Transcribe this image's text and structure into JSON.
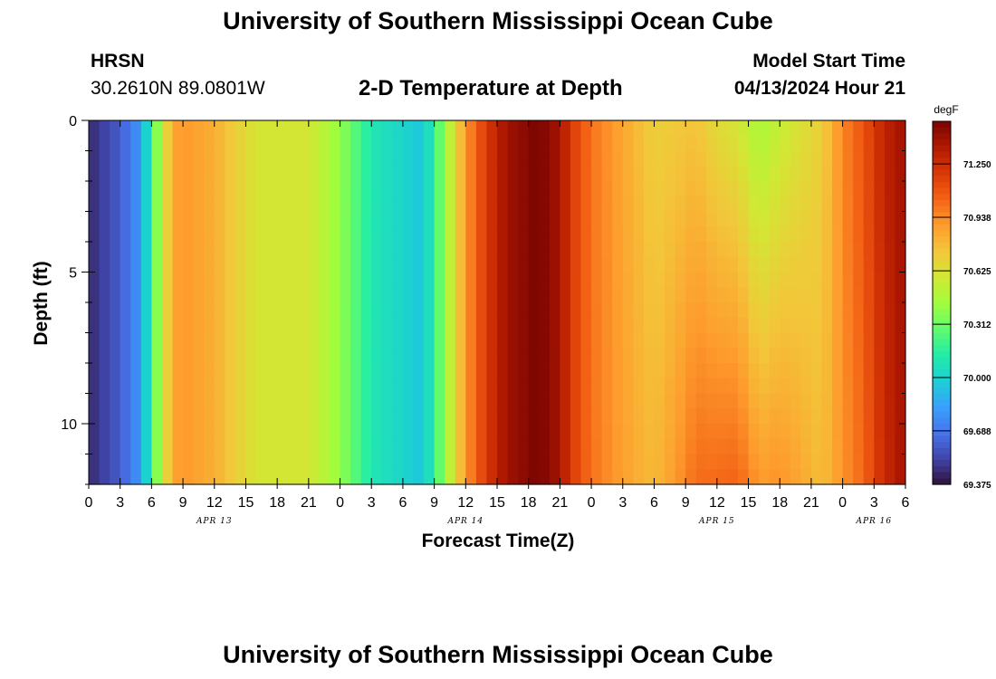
{
  "header": {
    "title": "University of Southern Mississippi Ocean Cube",
    "station": "HRSN",
    "coords": "30.2610N  89.0801W",
    "subtitle": "2-D Temperature at Depth",
    "model_start_label": "Model Start Time",
    "model_start_value": "04/13/2024 Hour 21"
  },
  "footer": {
    "title": "University of Southern Mississippi Ocean Cube"
  },
  "chart_data": {
    "type": "heatmap",
    "title": "2-D Temperature at Depth",
    "xlabel": "Forecast Time(Z)",
    "ylabel": "Depth (ft)",
    "x_hours_range": [
      0,
      78
    ],
    "y_range": [
      0,
      12
    ],
    "y_inverted": true,
    "y_ticks": [
      "0",
      "5",
      "10"
    ],
    "x_tick_labels": [
      "0",
      "3",
      "6",
      "9",
      "12",
      "15",
      "18",
      "21",
      "0",
      "3",
      "6",
      "9",
      "12",
      "15",
      "18",
      "21",
      "0",
      "3",
      "6",
      "9",
      "12",
      "15",
      "18",
      "21",
      "0",
      "3",
      "6"
    ],
    "date_labels": [
      {
        "hour": 12,
        "label": "APR 13"
      },
      {
        "hour": 36,
        "label": "APR 14"
      },
      {
        "hour": 60,
        "label": "APR 15"
      },
      {
        "hour": 75,
        "label": "APR 16"
      }
    ],
    "colorbar": {
      "units": "degF",
      "min": 69.375,
      "max": 71.5,
      "ticks": [
        "71.250",
        "70.938",
        "70.625",
        "70.312",
        "70.000",
        "69.688",
        "69.375"
      ],
      "colors": [
        "#30123b",
        "#4145ab",
        "#4675ed",
        "#39a2fc",
        "#1bcfd4",
        "#24eca6",
        "#61fc6c",
        "#a4fc3b",
        "#d1e834",
        "#f3c63a",
        "#fe9b2d",
        "#f36315",
        "#d93806",
        "#b11901",
        "#7a0402"
      ]
    },
    "surface_profile": {
      "hours": [
        0,
        3,
        5,
        6,
        7,
        8,
        9,
        12,
        16,
        21,
        24,
        27,
        32,
        34,
        36,
        38,
        40,
        43,
        45,
        46,
        48,
        52,
        54,
        58,
        60,
        62,
        64,
        66,
        70,
        72,
        74,
        76,
        78
      ],
      "temps": [
        69.44,
        69.6,
        69.8,
        70.2,
        70.55,
        70.85,
        70.9,
        70.82,
        70.6,
        70.6,
        70.4,
        70.1,
        69.95,
        70.4,
        70.9,
        71.2,
        71.4,
        71.5,
        71.38,
        71.2,
        71.0,
        70.8,
        70.7,
        70.75,
        70.65,
        70.6,
        70.45,
        70.55,
        70.7,
        70.95,
        71.1,
        71.3,
        71.4
      ]
    }
  }
}
